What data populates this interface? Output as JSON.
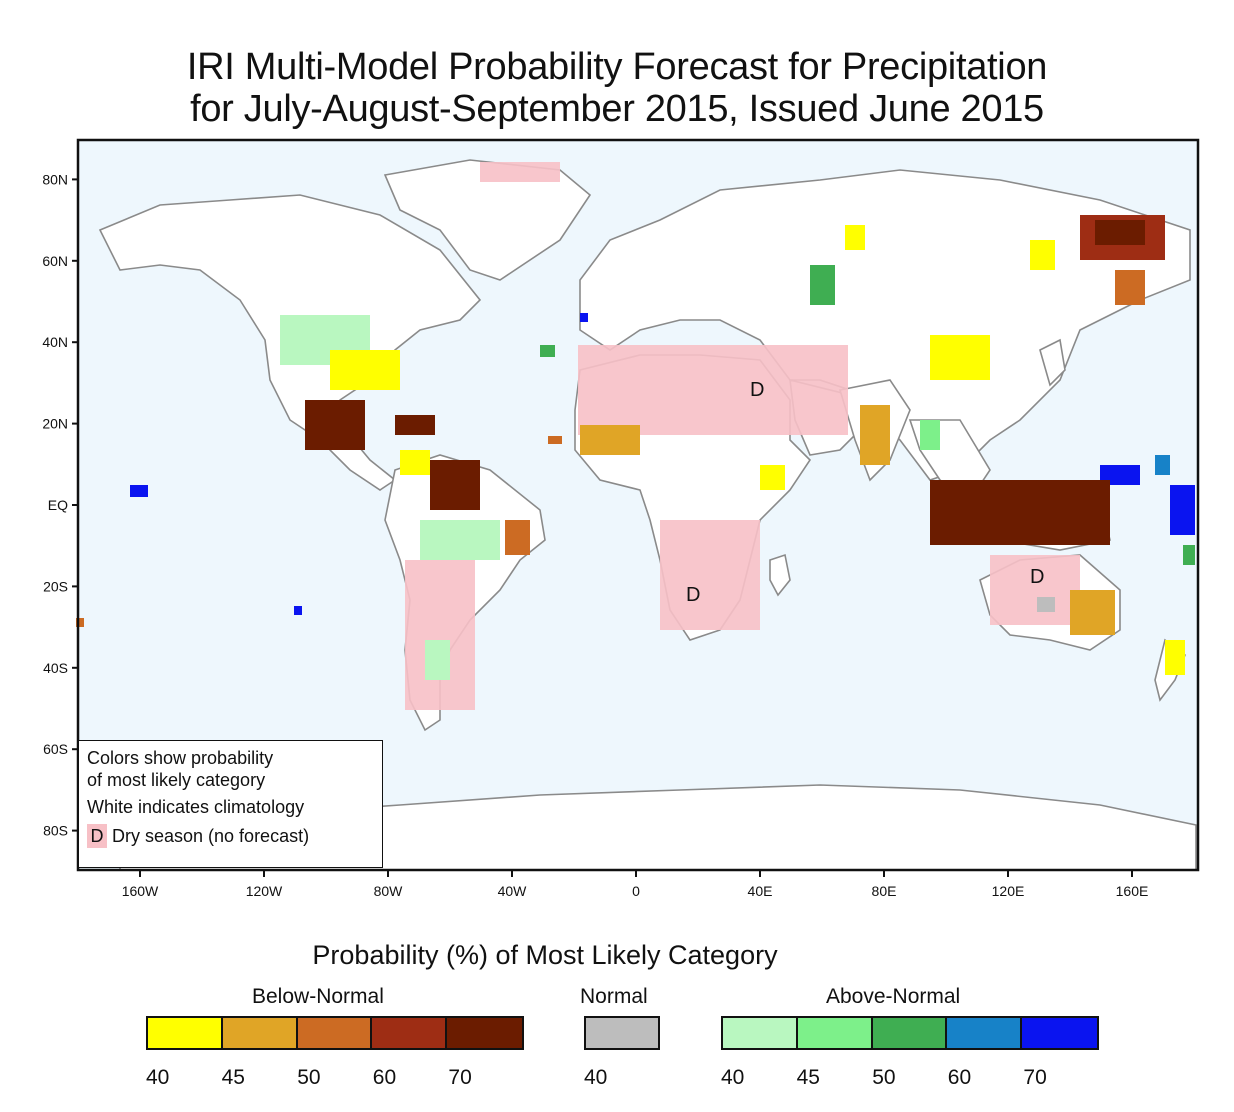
{
  "title": {
    "line1": "IRI Multi-Model Probability Forecast for Precipitation",
    "line2": "for July-August-September 2015, Issued June 2015"
  },
  "map": {
    "lat_labels": [
      "80N",
      "60N",
      "40N",
      "20N",
      "EQ",
      "20S",
      "40S",
      "60S",
      "80S"
    ],
    "lat_values": [
      80,
      60,
      40,
      20,
      0,
      -20,
      -40,
      -60,
      -80
    ],
    "lon_labels": [
      "160W",
      "120W",
      "80W",
      "40W",
      "0",
      "40E",
      "80E",
      "120E",
      "160E"
    ],
    "lon_values": [
      -160,
      -120,
      -80,
      -40,
      0,
      40,
      80,
      120,
      160
    ],
    "dry_season_marker": "D",
    "colors": {
      "ocean": "#eef7fd",
      "coast": "#8a8a8a",
      "dry": "#f7c0c6"
    }
  },
  "inset_legend": {
    "line1": "Colors show probability",
    "line2": "of most likely category",
    "line3": "White indicates climatology",
    "dry_marker": "D",
    "dry_text": "Dry season (no forecast)"
  },
  "legend": {
    "heading": "Probability (%) of Most Likely Category",
    "below": {
      "label": "Below-Normal",
      "colors": [
        "#ffff00",
        "#e0a526",
        "#cc6b23",
        "#9e2d14",
        "#6b1c00"
      ],
      "ticks": [
        "40",
        "45",
        "50",
        "60",
        "70"
      ]
    },
    "normal": {
      "label": "Normal",
      "colors": [
        "#bdbdbd"
      ],
      "ticks": [
        "40"
      ]
    },
    "above": {
      "label": "Above-Normal",
      "colors": [
        "#b9f7c0",
        "#7df08a",
        "#3fae52",
        "#1782c8",
        "#0a14f0"
      ],
      "ticks": [
        "40",
        "45",
        "50",
        "60",
        "70"
      ]
    }
  }
}
